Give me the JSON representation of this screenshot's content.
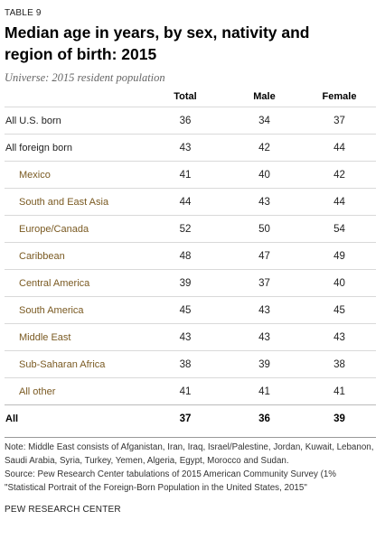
{
  "header": {
    "label": "TABLE 9",
    "title_line1": "Median age in years, by sex, nativity and",
    "title_line2": "region of birth: 2015",
    "subtitle": "Universe: 2015 resident population"
  },
  "table": {
    "columns": [
      "",
      "Total",
      "Male",
      "Female"
    ],
    "rows": [
      {
        "name": "All U.S. born",
        "total": "36",
        "male": "34",
        "female": "37"
      },
      {
        "name": "All foreign born",
        "total": "43",
        "male": "42",
        "female": "44"
      },
      {
        "name": "Mexico",
        "total": "41",
        "male": "40",
        "female": "42"
      },
      {
        "name": "South and East Asia",
        "total": "44",
        "male": "43",
        "female": "44"
      },
      {
        "name": "Europe/Canada",
        "total": "52",
        "male": "50",
        "female": "54"
      },
      {
        "name": "Caribbean",
        "total": "48",
        "male": "47",
        "female": "49"
      },
      {
        "name": "Central America",
        "total": "39",
        "male": "37",
        "female": "40"
      },
      {
        "name": "South America",
        "total": "45",
        "male": "43",
        "female": "45"
      },
      {
        "name": "Middle East",
        "total": "43",
        "male": "43",
        "female": "43"
      },
      {
        "name": "Sub-Saharan Africa",
        "total": "38",
        "male": "39",
        "female": "38"
      },
      {
        "name": "All other",
        "total": "41",
        "male": "41",
        "female": "41"
      },
      {
        "name": "All",
        "total": "37",
        "male": "36",
        "female": "39"
      }
    ]
  },
  "notes": {
    "note": "Note: Middle East consists of Afganistan, Iran, Iraq, Israel/Palestine, Jordan, Kuwait, Lebanon, Saudi Arabia, Syria, Turkey, Yemen, Algeria, Egypt, Morocco and Sudan.",
    "source_line1": "Source: Pew Research Center tabulations of 2015 American Community Survey (1%",
    "source_line2": "\"Statistical Portrait of the Foreign-Born Population in the United States, 2015\""
  },
  "footer": {
    "org": "PEW RESEARCH CENTER"
  }
}
